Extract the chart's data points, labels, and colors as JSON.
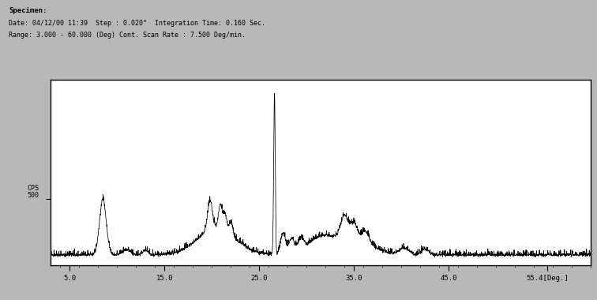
{
  "title_line1": "Specimen:",
  "title_line2": "Date: 04/12/00 11:39  Step : 0.020°  Integration Time: 0.160 Sec.",
  "title_line3": "Range: 3.000 - 60.000 (Deg) Cont. Scan Rate : 7.500 Deg/min.",
  "xmin": 3.0,
  "xmax": 60.0,
  "ymin": 0,
  "ymax": 1400,
  "xticks": [
    5.0,
    15.0,
    25.0,
    35.0,
    45.0,
    55.4
  ],
  "xtick_labels": [
    "5.0",
    "15.0",
    "25.0",
    "35.0",
    "45.0",
    "55.4[Deg.]"
  ],
  "bg_color": "#b8b8b8",
  "plot_bg_color": "#ffffff",
  "line_color": "#000000",
  "cps_label": "CPS",
  "y500_label": "500",
  "y500_value": 500,
  "seed": 42
}
